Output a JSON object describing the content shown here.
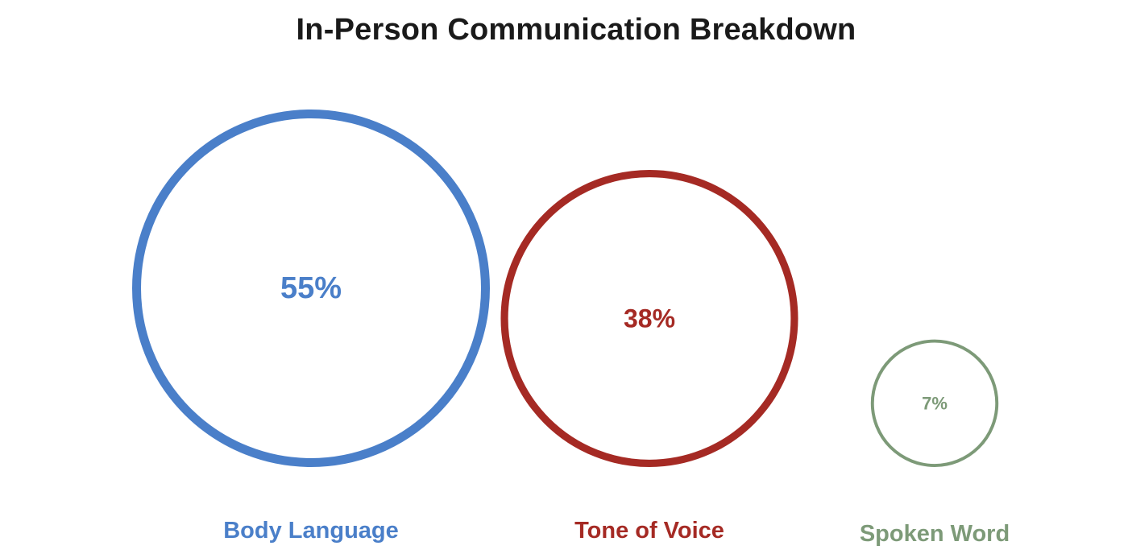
{
  "chart_data": {
    "type": "bubble",
    "title": "In-Person Communication Breakdown",
    "categories": [
      "Body Language",
      "Tone of Voice",
      "Spoken Word"
    ],
    "values": [
      55,
      38,
      7
    ],
    "value_labels": [
      "55%",
      "38%",
      "7%"
    ],
    "unit": "%",
    "colors": [
      "#4a7fc9",
      "#a52a24",
      "#7d9a78"
    ],
    "grid": false,
    "legend": "none"
  }
}
